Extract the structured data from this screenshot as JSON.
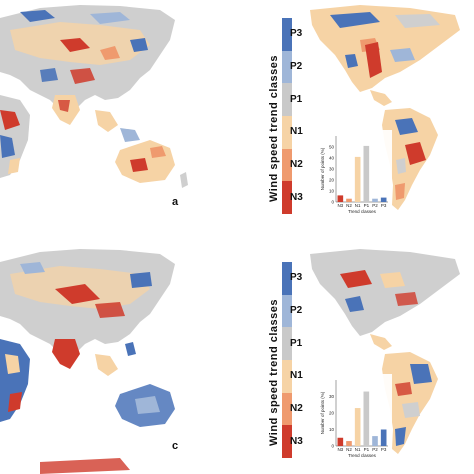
{
  "legend": {
    "title": "Wind speed trend classes",
    "classes": [
      {
        "label": "P3",
        "color": "#4a73b8"
      },
      {
        "label": "P2",
        "color": "#9fb6d8"
      },
      {
        "label": "P1",
        "color": "#c9c9c9"
      },
      {
        "label": "N1",
        "color": "#f6d3a5"
      },
      {
        "label": "N2",
        "color": "#ef9a6e"
      },
      {
        "label": "N3",
        "color": "#cf3b2c"
      }
    ]
  },
  "panels": [
    {
      "letter": "a"
    },
    {
      "letter": "c"
    }
  ],
  "chart_data": [
    {
      "type": "bar",
      "categories": [
        "N3",
        "N2",
        "N1",
        "P1",
        "P2",
        "P3"
      ],
      "values": [
        6,
        3,
        41,
        51,
        3,
        4
      ],
      "ylim": [
        0,
        60
      ],
      "xlabel": "Trend classes",
      "ylabel": "Number of points (%)",
      "yticks": [
        0,
        10,
        20,
        30,
        40,
        50
      ],
      "colors": [
        "#cf3b2c",
        "#ef9a6e",
        "#f6d3a5",
        "#c9c9c9",
        "#9fb6d8",
        "#4a73b8"
      ]
    },
    {
      "type": "bar",
      "categories": [
        "N3",
        "N2",
        "N1",
        "P1",
        "P2",
        "P3"
      ],
      "values": [
        5,
        3,
        23,
        33,
        6,
        10
      ],
      "ylim": [
        0,
        40
      ],
      "xlabel": "Trend classes",
      "ylabel": "Number of points (%)",
      "yticks": [
        0,
        10,
        20,
        30
      ],
      "colors": [
        "#cf3b2c",
        "#ef9a6e",
        "#f6d3a5",
        "#c9c9c9",
        "#9fb6d8",
        "#4a73b8"
      ]
    }
  ]
}
